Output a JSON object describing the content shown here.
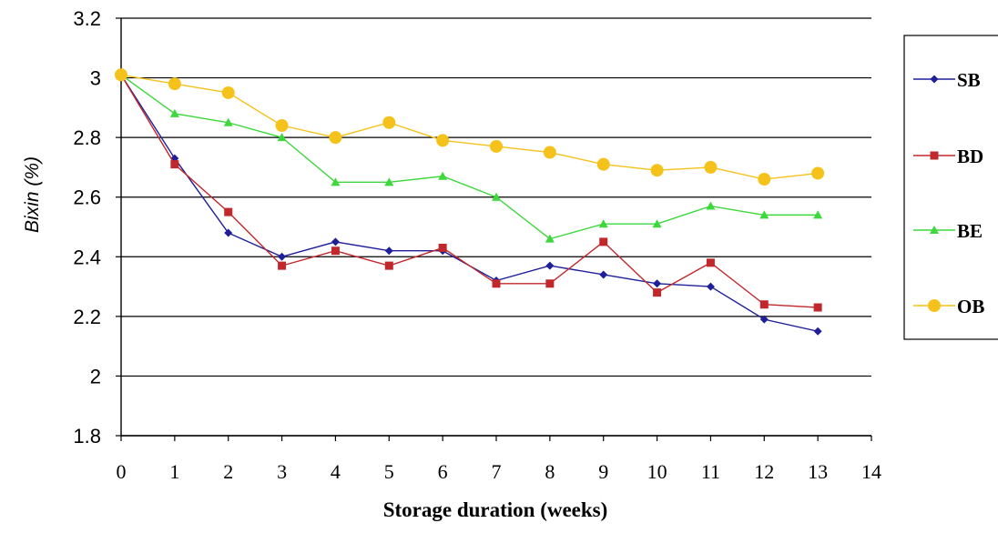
{
  "chart_data": {
    "type": "line",
    "xlabel": "Storage duration (weeks)",
    "ylabel": "Bixin (%)",
    "xlim": [
      0,
      14
    ],
    "ylim": [
      1.8,
      3.2
    ],
    "x_ticks": [
      0,
      1,
      2,
      3,
      4,
      5,
      6,
      7,
      8,
      9,
      10,
      11,
      12,
      13,
      14
    ],
    "y_ticks": [
      1.8,
      2,
      2.2,
      2.4,
      2.6,
      2.8,
      3,
      3.2
    ],
    "y_tick_labels": [
      "1.8",
      "2",
      "2.2",
      "2.4",
      "2.6",
      "2.8",
      "3",
      "3.2"
    ],
    "grid": "horizontal",
    "legend_position": "right",
    "x": [
      0,
      1,
      2,
      3,
      4,
      5,
      6,
      7,
      8,
      9,
      10,
      11,
      12,
      13
    ],
    "series": [
      {
        "name": "SB",
        "color": "#1f1f9a",
        "marker": "diamond",
        "values": [
          3.01,
          2.73,
          2.48,
          2.4,
          2.45,
          2.42,
          2.42,
          2.32,
          2.37,
          2.34,
          2.31,
          2.3,
          2.19,
          2.15
        ]
      },
      {
        "name": "BD",
        "color": "#c0282b",
        "marker": "square",
        "values": [
          3.01,
          2.71,
          2.55,
          2.37,
          2.42,
          2.37,
          2.43,
          2.31,
          2.31,
          2.45,
          2.28,
          2.38,
          2.24,
          2.23
        ]
      },
      {
        "name": "BE",
        "color": "#3cd83c",
        "marker": "triangle",
        "values": [
          3.01,
          2.88,
          2.85,
          2.8,
          2.65,
          2.65,
          2.67,
          2.6,
          2.46,
          2.51,
          2.51,
          2.57,
          2.54,
          2.54
        ]
      },
      {
        "name": "OB",
        "color": "#f5c21b",
        "marker": "circle",
        "values": [
          3.01,
          2.98,
          2.95,
          2.84,
          2.8,
          2.85,
          2.79,
          2.77,
          2.75,
          2.71,
          2.69,
          2.7,
          2.66,
          2.68
        ]
      }
    ]
  }
}
